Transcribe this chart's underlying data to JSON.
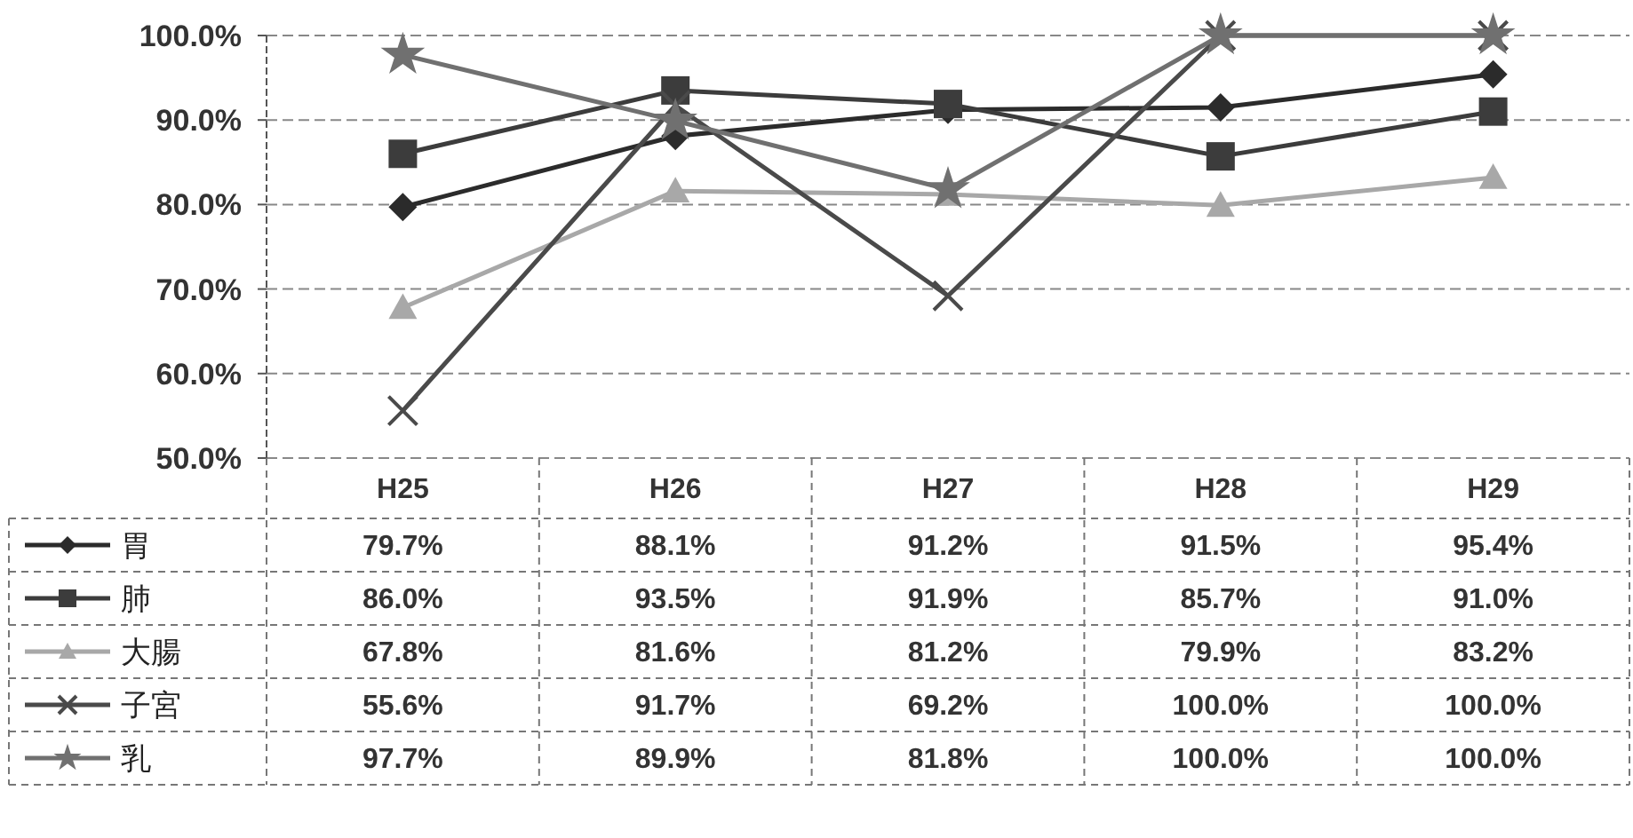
{
  "chart_data": {
    "type": "line",
    "categories": [
      "H25",
      "H26",
      "H27",
      "H28",
      "H29"
    ],
    "series": [
      {
        "name": "胃",
        "color": "#2b2b2b",
        "marker": "diamond",
        "values": [
          79.7,
          88.1,
          91.2,
          91.5,
          95.4
        ],
        "value_labels": [
          "79.7%",
          "88.1%",
          "91.2%",
          "91.5%",
          "95.4%"
        ]
      },
      {
        "name": "肺",
        "color": "#3c3c3c",
        "marker": "square",
        "values": [
          86.0,
          93.5,
          91.9,
          85.7,
          91.0
        ],
        "value_labels": [
          "86.0%",
          "93.5%",
          "91.9%",
          "85.7%",
          "91.0%"
        ]
      },
      {
        "name": "大腸",
        "color": "#a8a8a8",
        "marker": "triangle",
        "values": [
          67.8,
          81.6,
          81.2,
          79.9,
          83.2
        ],
        "value_labels": [
          "67.8%",
          "81.6%",
          "81.2%",
          "79.9%",
          "83.2%"
        ]
      },
      {
        "name": "子宮",
        "color": "#4a4a4a",
        "marker": "cross",
        "values": [
          55.6,
          91.7,
          69.2,
          100.0,
          100.0
        ],
        "value_labels": [
          "55.6%",
          "91.7%",
          "69.2%",
          "100.0%",
          "100.0%"
        ]
      },
      {
        "name": "乳",
        "color": "#707070",
        "marker": "star",
        "values": [
          97.7,
          89.9,
          81.8,
          100.0,
          100.0
        ],
        "value_labels": [
          "97.7%",
          "89.9%",
          "81.8%",
          "100.0%",
          "100.0%"
        ]
      }
    ],
    "ylim": [
      50,
      100
    ],
    "yticks": [
      {
        "value": 50,
        "label": "50.0%"
      },
      {
        "value": 60,
        "label": "60.0%"
      },
      {
        "value": 70,
        "label": "70.0%"
      },
      {
        "value": 80,
        "label": "80.0%"
      },
      {
        "value": 90,
        "label": "90.0%"
      },
      {
        "value": 100,
        "label": "100.0%"
      }
    ],
    "grid": "y",
    "legend": "bottom left",
    "line_style": "solid",
    "data_labels": true
  }
}
